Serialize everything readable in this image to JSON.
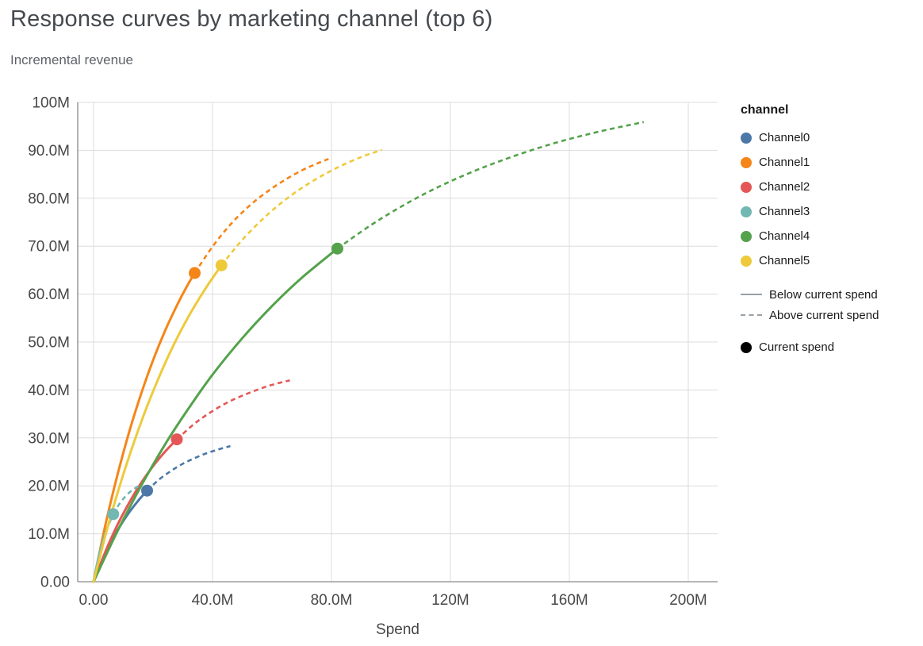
{
  "page": {
    "title": "Response curves by marketing channel (top 6)",
    "subtitle": "Incremental revenue"
  },
  "chart_data": {
    "type": "line",
    "title": "Response curves by marketing channel (top 6)",
    "xlabel": "Spend",
    "ylabel": "Incremental revenue",
    "value_unit": "M",
    "xlim": [
      0,
      200
    ],
    "ylim": [
      0,
      100
    ],
    "grid": true,
    "legend_position": "right",
    "x_ticks": {
      "values": [
        0,
        40,
        80,
        120,
        160,
        200
      ],
      "labels": [
        "0.00",
        "40.0M",
        "80.0M",
        "120M",
        "160M",
        "200M"
      ]
    },
    "y_ticks": {
      "values": [
        0,
        10,
        20,
        30,
        40,
        50,
        60,
        70,
        80,
        90,
        100
      ],
      "labels": [
        "0.00",
        "10.0M",
        "20.0M",
        "30.0M",
        "40.0M",
        "50.0M",
        "60.0M",
        "70.0M",
        "80.0M",
        "90.0M",
        "100M"
      ]
    },
    "series": [
      {
        "name": "Channel0",
        "color": "#4c78a8",
        "current_spend": [
          18,
          19.0
        ],
        "solid": [
          [
            0,
            0
          ],
          [
            2,
            3.1
          ],
          [
            4,
            5.9
          ],
          [
            6,
            8.4
          ],
          [
            9,
            11.7
          ],
          [
            12,
            14.5
          ],
          [
            15,
            16.9
          ],
          [
            18,
            19.0
          ]
        ],
        "dashed": [
          [
            18,
            19.0
          ],
          [
            22,
            21.3
          ],
          [
            26,
            23.1
          ],
          [
            30,
            24.6
          ],
          [
            34,
            25.8
          ],
          [
            38,
            26.8
          ],
          [
            42,
            27.6
          ],
          [
            46,
            28.3
          ]
        ]
      },
      {
        "name": "Channel1",
        "color": "#f58518",
        "current_spend": [
          34,
          64.4
        ],
        "solid": [
          [
            0,
            0
          ],
          [
            4,
            11.9
          ],
          [
            8,
            22.2
          ],
          [
            12,
            31.3
          ],
          [
            16,
            39.2
          ],
          [
            20,
            46.2
          ],
          [
            24,
            52.3
          ],
          [
            28,
            57.6
          ],
          [
            31,
            61.2
          ],
          [
            34,
            64.4
          ]
        ],
        "dashed": [
          [
            34,
            64.4
          ],
          [
            40,
            69.9
          ],
          [
            46,
            74.5
          ],
          [
            52,
            78.2
          ],
          [
            58,
            81.2
          ],
          [
            64,
            83.7
          ],
          [
            70,
            85.8
          ],
          [
            75,
            87.2
          ],
          [
            79,
            88.2
          ]
        ]
      },
      {
        "name": "Channel2",
        "color": "#e45756",
        "current_spend": [
          28,
          29.7
        ],
        "solid": [
          [
            0,
            0
          ],
          [
            4,
            6.3
          ],
          [
            8,
            11.8
          ],
          [
            12,
            16.5
          ],
          [
            16,
            20.6
          ],
          [
            20,
            24.1
          ],
          [
            24,
            27.1
          ],
          [
            28,
            29.7
          ]
        ],
        "dashed": [
          [
            28,
            29.7
          ],
          [
            34,
            33.0
          ],
          [
            40,
            35.6
          ],
          [
            46,
            37.7
          ],
          [
            52,
            39.3
          ],
          [
            58,
            40.7
          ],
          [
            62,
            41.4
          ],
          [
            66,
            42.0
          ]
        ]
      },
      {
        "name": "Channel3",
        "color": "#72b7b2",
        "current_spend": [
          6.6,
          14.1
        ],
        "solid": [
          [
            0,
            0
          ],
          [
            1,
            3.2
          ],
          [
            2,
            5.9
          ],
          [
            3,
            8.2
          ],
          [
            4.5,
            11.1
          ],
          [
            5.5,
            12.6
          ],
          [
            6.6,
            14.1
          ]
        ],
        "dashed": [
          [
            6.6,
            14.1
          ],
          [
            8,
            15.6
          ],
          [
            10,
            17.3
          ],
          [
            12,
            18.6
          ],
          [
            13.5,
            19.3
          ],
          [
            15,
            19.9
          ]
        ]
      },
      {
        "name": "Channel4",
        "color": "#54a24b",
        "current_spend": [
          82,
          69.5
        ],
        "solid": [
          [
            0,
            0
          ],
          [
            8,
            10.5
          ],
          [
            16,
            20.0
          ],
          [
            24,
            28.6
          ],
          [
            32,
            36.2
          ],
          [
            40,
            43.2
          ],
          [
            50,
            50.8
          ],
          [
            60,
            57.5
          ],
          [
            70,
            63.4
          ],
          [
            82,
            69.5
          ]
        ],
        "dashed": [
          [
            82,
            69.5
          ],
          [
            95,
            75.1
          ],
          [
            110,
            80.5
          ],
          [
            125,
            84.9
          ],
          [
            140,
            88.5
          ],
          [
            155,
            91.5
          ],
          [
            170,
            93.9
          ],
          [
            185,
            95.9
          ]
        ]
      },
      {
        "name": "Channel5",
        "color": "#eeca3b",
        "current_spend": [
          43,
          66.0
        ],
        "solid": [
          [
            0,
            0
          ],
          [
            5,
            12.0
          ],
          [
            10,
            22.4
          ],
          [
            15,
            31.6
          ],
          [
            20,
            39.7
          ],
          [
            26,
            48.2
          ],
          [
            32,
            55.4
          ],
          [
            38,
            61.5
          ],
          [
            43,
            66.0
          ]
        ],
        "dashed": [
          [
            43,
            66.0
          ],
          [
            50,
            71.3
          ],
          [
            58,
            76.3
          ],
          [
            66,
            80.4
          ],
          [
            74,
            83.7
          ],
          [
            82,
            86.4
          ],
          [
            90,
            88.6
          ],
          [
            97,
            90.1
          ]
        ]
      }
    ]
  },
  "legend": {
    "title": "channel",
    "channels": [
      "Channel0",
      "Channel1",
      "Channel2",
      "Channel3",
      "Channel4",
      "Channel5"
    ],
    "colors": [
      "#4c78a8",
      "#f58518",
      "#e45756",
      "#72b7b2",
      "#54a24b",
      "#eeca3b"
    ],
    "line_styles": [
      {
        "style": "solid",
        "label": "Below current spend"
      },
      {
        "style": "dashed",
        "label": "Above current spend"
      }
    ],
    "point": {
      "label": "Current spend",
      "color": "#000000"
    }
  }
}
